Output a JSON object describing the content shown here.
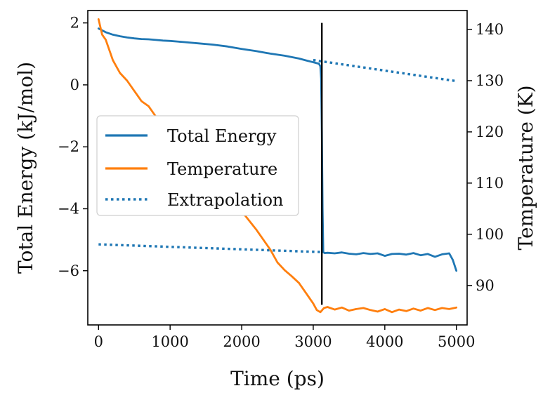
{
  "chart_data": {
    "type": "line",
    "xlabel": "Time (ps)",
    "ylabel_left": "Total Energy (kJ/mol)",
    "ylabel_right": "Temperature (K)",
    "xlim": [
      -150,
      5150
    ],
    "ylim_left": [
      -7.75,
      2.4
    ],
    "ylim_right": [
      82.3,
      143.7
    ],
    "x_ticks": [
      0,
      1000,
      2000,
      3000,
      4000,
      5000
    ],
    "y_left_ticks": [
      2,
      0,
      -2,
      -4,
      -6
    ],
    "y_right_ticks": [
      140,
      130,
      120,
      110,
      100,
      90
    ],
    "grid": false,
    "legend_position": "center-left",
    "vertical_marker_x": 3120,
    "series": [
      {
        "name": "Total Energy",
        "axis": "left",
        "color": "#1f77b4",
        "style": "solid",
        "x": [
          0,
          100,
          200,
          300,
          400,
          500,
          600,
          700,
          800,
          900,
          1000,
          1200,
          1400,
          1600,
          1800,
          2000,
          2200,
          2400,
          2600,
          2800,
          2900,
          3000,
          3050,
          3080,
          3100,
          3110,
          3120,
          3130,
          3140,
          3160,
          3200,
          3300,
          3400,
          3500,
          3600,
          3700,
          3800,
          3900,
          4000,
          4100,
          4200,
          4300,
          4400,
          4500,
          4600,
          4700,
          4800,
          4900,
          4950,
          5000
        ],
        "y": [
          1.82,
          1.7,
          1.62,
          1.57,
          1.53,
          1.5,
          1.48,
          1.47,
          1.45,
          1.43,
          1.42,
          1.38,
          1.34,
          1.3,
          1.24,
          1.16,
          1.09,
          1.01,
          0.94,
          0.85,
          0.79,
          0.73,
          0.7,
          0.68,
          0.6,
          0.2,
          -1.5,
          -4.0,
          -5.4,
          -5.43,
          -5.42,
          -5.44,
          -5.41,
          -5.45,
          -5.47,
          -5.43,
          -5.46,
          -5.44,
          -5.52,
          -5.46,
          -5.45,
          -5.48,
          -5.43,
          -5.5,
          -5.46,
          -5.55,
          -5.47,
          -5.44,
          -5.65,
          -6.0
        ]
      },
      {
        "name": "Temperature",
        "axis": "right",
        "color": "#ff7f0e",
        "style": "solid",
        "x": [
          0,
          50,
          100,
          150,
          200,
          300,
          400,
          500,
          600,
          700,
          800,
          900,
          1000,
          1200,
          1400,
          1600,
          1800,
          2000,
          2200,
          2400,
          2500,
          2600,
          2700,
          2800,
          2900,
          3000,
          3050,
          3100,
          3150,
          3200,
          3300,
          3400,
          3500,
          3600,
          3700,
          3800,
          3900,
          4000,
          4100,
          4200,
          4300,
          4400,
          4500,
          4600,
          4700,
          4800,
          4900,
          5000
        ],
        "y": [
          142,
          139,
          138,
          136,
          134,
          131.5,
          130,
          128,
          126,
          125,
          123,
          121,
          119,
          116,
          113,
          110.5,
          108,
          104.5,
          101,
          97,
          94.5,
          93,
          91.8,
          90.5,
          88.5,
          86.5,
          85.2,
          84.8,
          85.6,
          85.8,
          85.3,
          85.7,
          85.1,
          85.4,
          85.6,
          85.2,
          84.9,
          85.4,
          84.8,
          85.3,
          85.0,
          85.5,
          85.1,
          85.6,
          85.2,
          85.6,
          85.4,
          85.7
        ]
      },
      {
        "name": "Extrapolation",
        "axis": "left",
        "color": "#1f77b4",
        "style": "dotted",
        "x": [
          3000,
          5000
        ],
        "y": [
          0.8,
          0.12
        ]
      },
      {
        "name": "Extrapolation",
        "axis": "left",
        "color": "#1f77b4",
        "style": "dotted",
        "show_in_legend": false,
        "x": [
          0,
          3150
        ],
        "y": [
          -5.15,
          -5.4
        ]
      }
    ]
  }
}
